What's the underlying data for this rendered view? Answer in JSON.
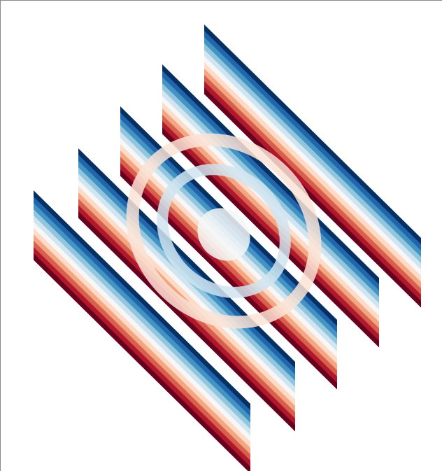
{
  "chart_data": {
    "type": "surface",
    "colormap": [
      "#053061",
      "#2166ac",
      "#4393c3",
      "#92c5de",
      "#d1e5f0",
      "#f7f7f7",
      "#fddbc7",
      "#f4a582",
      "#d6604d",
      "#b2182b",
      "#67001f"
    ]
  }
}
